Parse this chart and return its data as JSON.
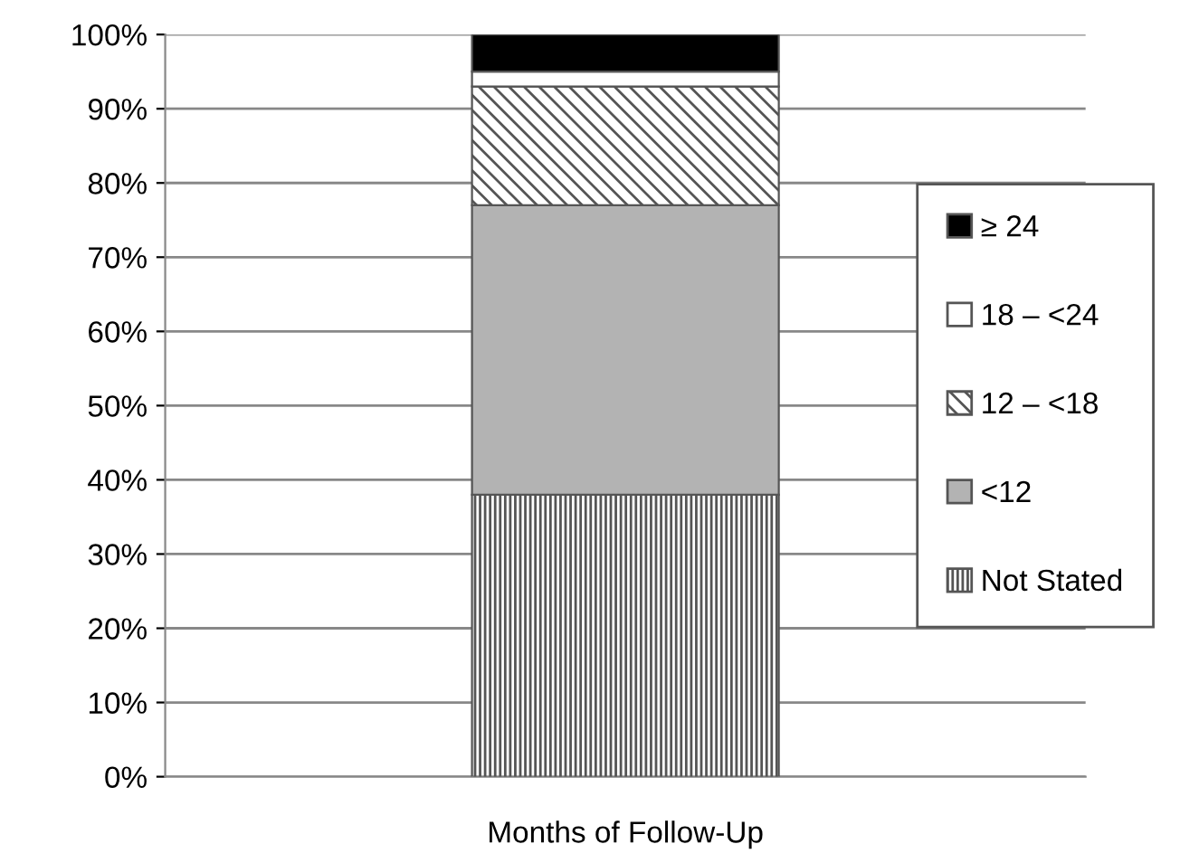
{
  "chart_data": {
    "type": "bar",
    "stacked": true,
    "xlabel": "Months of Follow-Up",
    "categories": [
      null
    ],
    "series": [
      {
        "name": "Not Stated",
        "color": "#555555",
        "values": [
          38
        ]
      },
      {
        "name": "<12",
        "color": "#b3b3b3",
        "values": [
          39
        ]
      },
      {
        "name": "12 – <18",
        "color": "#555555",
        "values": [
          16
        ]
      },
      {
        "name": "18 – <24",
        "color": "#ffffff",
        "values": [
          2
        ]
      },
      {
        "name": "≥ 24",
        "color": "#000000",
        "values": [
          5
        ]
      }
    ],
    "ylim": [
      0,
      100
    ],
    "yticks": [
      {
        "value": 0,
        "label": "0%"
      },
      {
        "value": 10,
        "label": "10%"
      },
      {
        "value": 20,
        "label": "20%"
      },
      {
        "value": 30,
        "label": "30%"
      },
      {
        "value": 40,
        "label": "40%"
      },
      {
        "value": 50,
        "label": "50%"
      },
      {
        "value": 60,
        "label": "60%"
      },
      {
        "value": 70,
        "label": "70%"
      },
      {
        "value": 80,
        "label": "80%"
      },
      {
        "value": 90,
        "label": "90%"
      },
      {
        "value": 100,
        "label": "100%"
      }
    ],
    "grid": "y",
    "legend": "right"
  }
}
